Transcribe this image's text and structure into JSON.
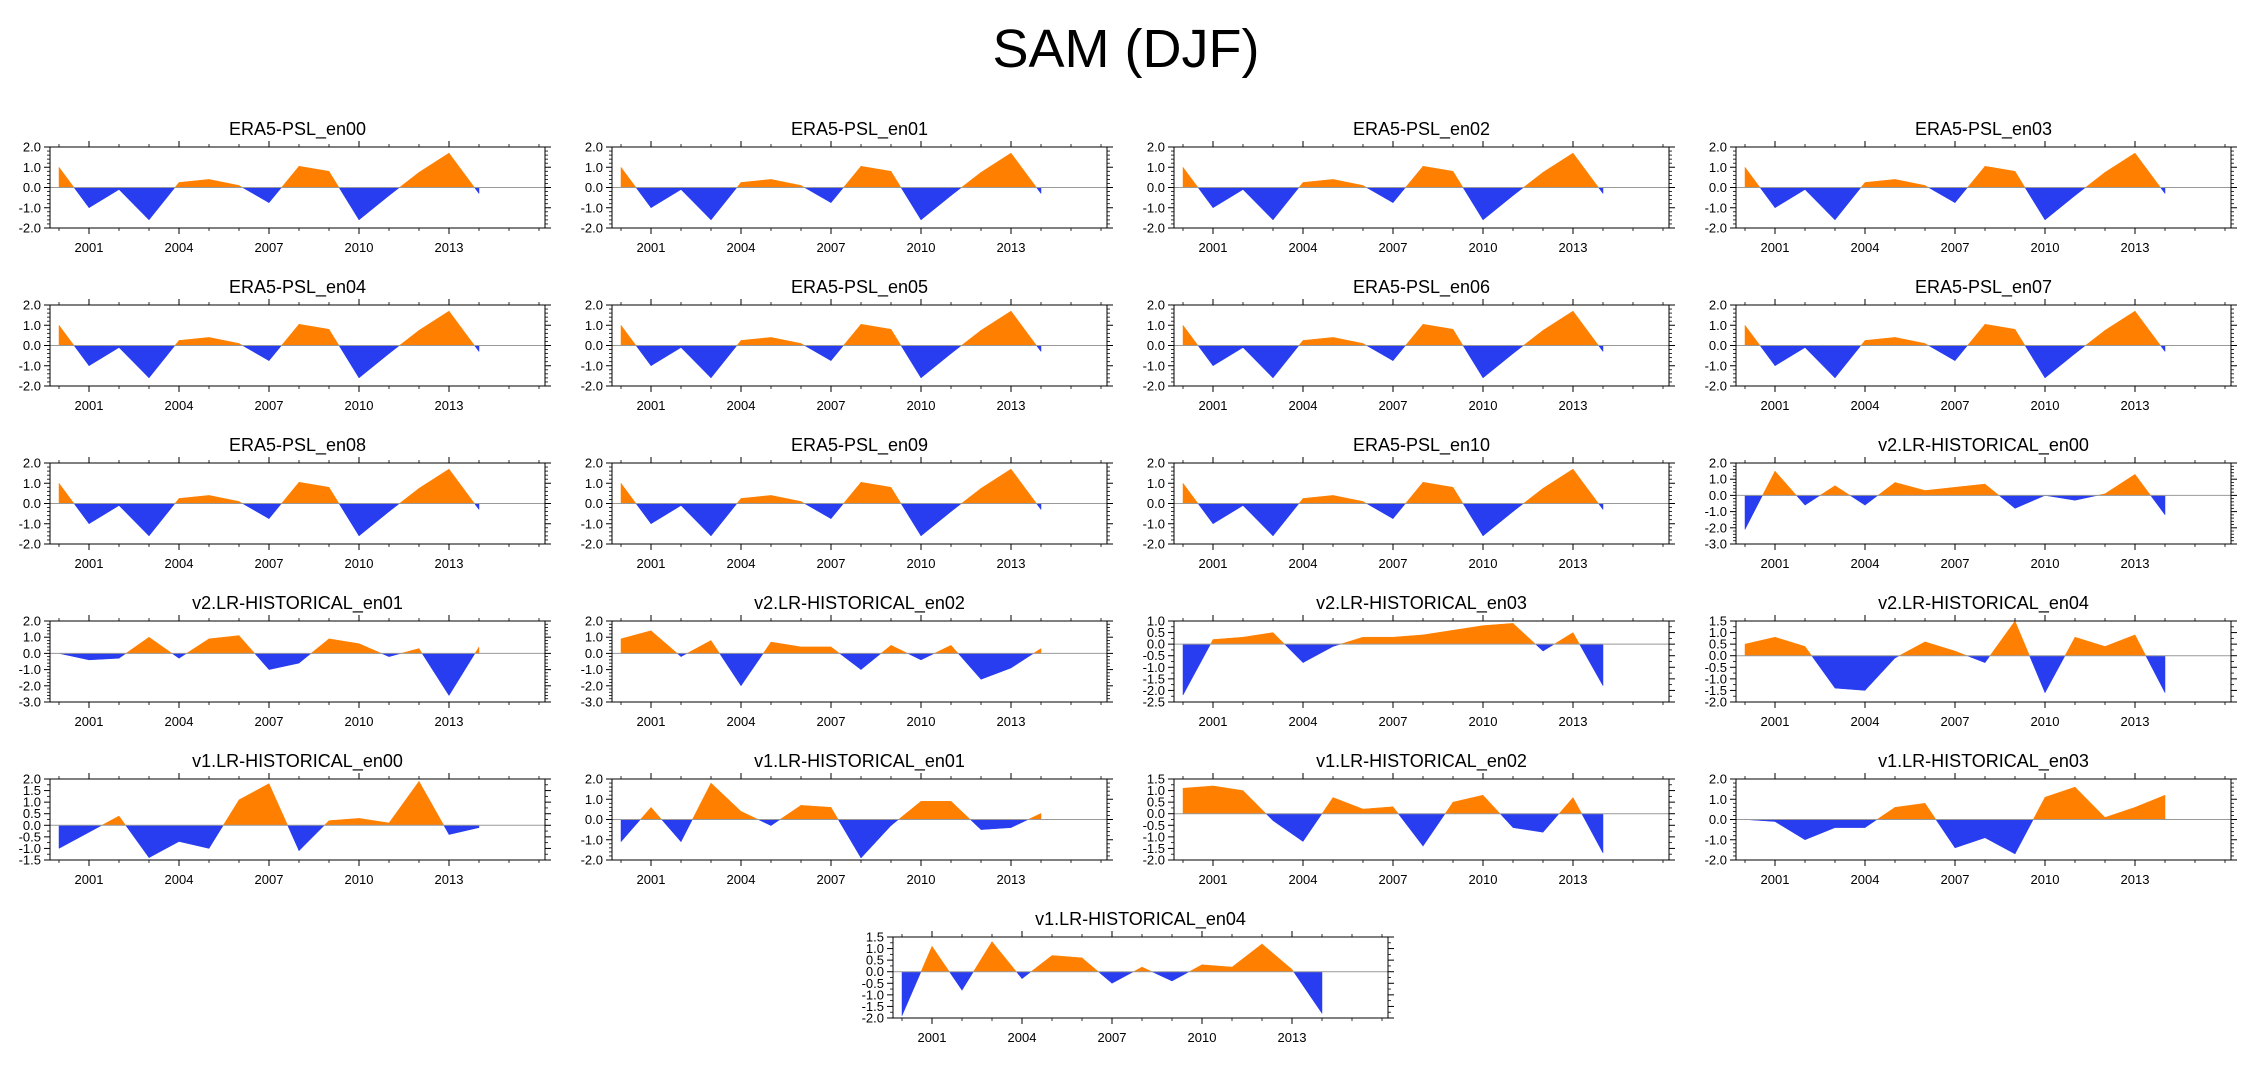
{
  "title": "SAM (DJF)",
  "colors": {
    "positive": "#ff8000",
    "negative": "#283cf0",
    "axis": "#000000",
    "zero_line": "#999999"
  },
  "x_ticks": [
    2001,
    2004,
    2007,
    2010,
    2013
  ],
  "chart_data": [
    {
      "type": "area",
      "title": "ERA5-PSL_en00",
      "years": [
        2000,
        2001,
        2002,
        2003,
        2004,
        2005,
        2006,
        2007,
        2008,
        2009,
        2010,
        2011,
        2012,
        2013,
        2014
      ],
      "values": [
        1.0,
        -1.0,
        -0.1,
        -1.6,
        0.25,
        0.4,
        0.1,
        -0.75,
        1.05,
        0.8,
        -1.6,
        -0.4,
        0.75,
        1.7,
        -0.3
      ],
      "ylim": [
        -2.0,
        2.0
      ],
      "yticks": [
        "2.0",
        "1.0",
        "0.0",
        "-1.0",
        "-2.0"
      ]
    },
    {
      "type": "area",
      "title": "ERA5-PSL_en01",
      "years": [
        2000,
        2001,
        2002,
        2003,
        2004,
        2005,
        2006,
        2007,
        2008,
        2009,
        2010,
        2011,
        2012,
        2013,
        2014
      ],
      "values": [
        1.0,
        -1.0,
        -0.1,
        -1.6,
        0.25,
        0.4,
        0.1,
        -0.75,
        1.05,
        0.8,
        -1.6,
        -0.4,
        0.75,
        1.7,
        -0.3
      ],
      "ylim": [
        -2.0,
        2.0
      ],
      "yticks": [
        "2.0",
        "1.0",
        "0.0",
        "-1.0",
        "-2.0"
      ]
    },
    {
      "type": "area",
      "title": "ERA5-PSL_en02",
      "years": [
        2000,
        2001,
        2002,
        2003,
        2004,
        2005,
        2006,
        2007,
        2008,
        2009,
        2010,
        2011,
        2012,
        2013,
        2014
      ],
      "values": [
        1.0,
        -1.0,
        -0.1,
        -1.6,
        0.25,
        0.4,
        0.1,
        -0.75,
        1.05,
        0.8,
        -1.6,
        -0.4,
        0.75,
        1.7,
        -0.3
      ],
      "ylim": [
        -2.0,
        2.0
      ],
      "yticks": [
        "2.0",
        "1.0",
        "0.0",
        "-1.0",
        "-2.0"
      ]
    },
    {
      "type": "area",
      "title": "ERA5-PSL_en03",
      "years": [
        2000,
        2001,
        2002,
        2003,
        2004,
        2005,
        2006,
        2007,
        2008,
        2009,
        2010,
        2011,
        2012,
        2013,
        2014
      ],
      "values": [
        1.0,
        -1.0,
        -0.1,
        -1.6,
        0.25,
        0.4,
        0.1,
        -0.75,
        1.05,
        0.8,
        -1.6,
        -0.4,
        0.75,
        1.7,
        -0.3
      ],
      "ylim": [
        -2.0,
        2.0
      ],
      "yticks": [
        "2.0",
        "1.0",
        "0.0",
        "-1.0",
        "-2.0"
      ]
    },
    {
      "type": "area",
      "title": "ERA5-PSL_en04",
      "years": [
        2000,
        2001,
        2002,
        2003,
        2004,
        2005,
        2006,
        2007,
        2008,
        2009,
        2010,
        2011,
        2012,
        2013,
        2014
      ],
      "values": [
        1.0,
        -1.0,
        -0.1,
        -1.6,
        0.25,
        0.4,
        0.1,
        -0.75,
        1.05,
        0.8,
        -1.6,
        -0.4,
        0.75,
        1.7,
        -0.3
      ],
      "ylim": [
        -2.0,
        2.0
      ],
      "yticks": [
        "2.0",
        "1.0",
        "0.0",
        "-1.0",
        "-2.0"
      ]
    },
    {
      "type": "area",
      "title": "ERA5-PSL_en05",
      "years": [
        2000,
        2001,
        2002,
        2003,
        2004,
        2005,
        2006,
        2007,
        2008,
        2009,
        2010,
        2011,
        2012,
        2013,
        2014
      ],
      "values": [
        1.0,
        -1.0,
        -0.1,
        -1.6,
        0.25,
        0.4,
        0.1,
        -0.75,
        1.05,
        0.8,
        -1.6,
        -0.4,
        0.75,
        1.7,
        -0.3
      ],
      "ylim": [
        -2.0,
        2.0
      ],
      "yticks": [
        "2.0",
        "1.0",
        "0.0",
        "-1.0",
        "-2.0"
      ]
    },
    {
      "type": "area",
      "title": "ERA5-PSL_en06",
      "years": [
        2000,
        2001,
        2002,
        2003,
        2004,
        2005,
        2006,
        2007,
        2008,
        2009,
        2010,
        2011,
        2012,
        2013,
        2014
      ],
      "values": [
        1.0,
        -1.0,
        -0.1,
        -1.6,
        0.25,
        0.4,
        0.1,
        -0.75,
        1.05,
        0.8,
        -1.6,
        -0.4,
        0.75,
        1.7,
        -0.3
      ],
      "ylim": [
        -2.0,
        2.0
      ],
      "yticks": [
        "2.0",
        "1.0",
        "0.0",
        "-1.0",
        "-2.0"
      ]
    },
    {
      "type": "area",
      "title": "ERA5-PSL_en07",
      "years": [
        2000,
        2001,
        2002,
        2003,
        2004,
        2005,
        2006,
        2007,
        2008,
        2009,
        2010,
        2011,
        2012,
        2013,
        2014
      ],
      "values": [
        1.0,
        -1.0,
        -0.1,
        -1.6,
        0.25,
        0.4,
        0.1,
        -0.75,
        1.05,
        0.8,
        -1.6,
        -0.4,
        0.75,
        1.7,
        -0.3
      ],
      "ylim": [
        -2.0,
        2.0
      ],
      "yticks": [
        "2.0",
        "1.0",
        "0.0",
        "-1.0",
        "-2.0"
      ]
    },
    {
      "type": "area",
      "title": "ERA5-PSL_en08",
      "years": [
        2000,
        2001,
        2002,
        2003,
        2004,
        2005,
        2006,
        2007,
        2008,
        2009,
        2010,
        2011,
        2012,
        2013,
        2014
      ],
      "values": [
        1.0,
        -1.0,
        -0.1,
        -1.6,
        0.25,
        0.4,
        0.1,
        -0.75,
        1.05,
        0.8,
        -1.6,
        -0.4,
        0.75,
        1.7,
        -0.3
      ],
      "ylim": [
        -2.0,
        2.0
      ],
      "yticks": [
        "2.0",
        "1.0",
        "0.0",
        "-1.0",
        "-2.0"
      ]
    },
    {
      "type": "area",
      "title": "ERA5-PSL_en09",
      "years": [
        2000,
        2001,
        2002,
        2003,
        2004,
        2005,
        2006,
        2007,
        2008,
        2009,
        2010,
        2011,
        2012,
        2013,
        2014
      ],
      "values": [
        1.0,
        -1.0,
        -0.1,
        -1.6,
        0.25,
        0.4,
        0.1,
        -0.75,
        1.05,
        0.8,
        -1.6,
        -0.4,
        0.75,
        1.7,
        -0.3
      ],
      "ylim": [
        -2.0,
        2.0
      ],
      "yticks": [
        "2.0",
        "1.0",
        "0.0",
        "-1.0",
        "-2.0"
      ]
    },
    {
      "type": "area",
      "title": "ERA5-PSL_en10",
      "years": [
        2000,
        2001,
        2002,
        2003,
        2004,
        2005,
        2006,
        2007,
        2008,
        2009,
        2010,
        2011,
        2012,
        2013,
        2014
      ],
      "values": [
        1.0,
        -1.0,
        -0.1,
        -1.6,
        0.25,
        0.4,
        0.1,
        -0.75,
        1.05,
        0.8,
        -1.6,
        -0.4,
        0.75,
        1.7,
        -0.3
      ],
      "ylim": [
        -2.0,
        2.0
      ],
      "yticks": [
        "2.0",
        "1.0",
        "0.0",
        "-1.0",
        "-2.0"
      ]
    },
    {
      "type": "area",
      "title": "v2.LR-HISTORICAL_en00",
      "years": [
        2000,
        2001,
        2002,
        2003,
        2004,
        2005,
        2006,
        2007,
        2008,
        2009,
        2010,
        2011,
        2012,
        2013,
        2014
      ],
      "values": [
        -2.1,
        1.5,
        -0.6,
        0.6,
        -0.6,
        0.8,
        0.3,
        0.5,
        0.7,
        -0.8,
        0.0,
        -0.3,
        0.1,
        1.3,
        -1.2
      ],
      "ylim": [
        -3.0,
        2.0
      ],
      "yticks": [
        "2.0",
        "1.0",
        "0.0",
        "-1.0",
        "-2.0",
        "-3.0"
      ]
    },
    {
      "type": "area",
      "title": "v2.LR-HISTORICAL_en01",
      "years": [
        2000,
        2001,
        2002,
        2003,
        2004,
        2005,
        2006,
        2007,
        2008,
        2009,
        2010,
        2011,
        2012,
        2013,
        2014
      ],
      "values": [
        0.0,
        -0.4,
        -0.3,
        1.0,
        -0.3,
        0.9,
        1.1,
        -1.0,
        -0.6,
        0.9,
        0.6,
        -0.2,
        0.3,
        -2.6,
        0.4
      ],
      "ylim": [
        -3.0,
        2.0
      ],
      "yticks": [
        "2.0",
        "1.0",
        "0.0",
        "-1.0",
        "-2.0",
        "-3.0"
      ]
    },
    {
      "type": "area",
      "title": "v2.LR-HISTORICAL_en02",
      "years": [
        2000,
        2001,
        2002,
        2003,
        2004,
        2005,
        2006,
        2007,
        2008,
        2009,
        2010,
        2011,
        2012,
        2013,
        2014
      ],
      "values": [
        0.9,
        1.4,
        -0.2,
        0.8,
        -2.0,
        0.7,
        0.4,
        0.4,
        -1.0,
        0.5,
        -0.4,
        0.5,
        -1.6,
        -0.9,
        0.3
      ],
      "ylim": [
        -3.0,
        2.0
      ],
      "yticks": [
        "2.0",
        "1.0",
        "0.0",
        "-1.0",
        "-2.0",
        "-3.0"
      ]
    },
    {
      "type": "area",
      "title": "v2.LR-HISTORICAL_en03",
      "years": [
        2000,
        2001,
        2002,
        2003,
        2004,
        2005,
        2006,
        2007,
        2008,
        2009,
        2010,
        2011,
        2012,
        2013,
        2014
      ],
      "values": [
        -2.2,
        0.2,
        0.3,
        0.5,
        -0.8,
        -0.1,
        0.3,
        0.3,
        0.4,
        0.6,
        0.8,
        0.9,
        -0.3,
        0.5,
        -1.8
      ],
      "ylim": [
        -2.5,
        1.0
      ],
      "yticks": [
        "1.0",
        "0.5",
        "0.0",
        "-0.5",
        "-1.0",
        "-1.5",
        "-2.0",
        "-2.5"
      ]
    },
    {
      "type": "area",
      "title": "v2.LR-HISTORICAL_en04",
      "years": [
        2000,
        2001,
        2002,
        2003,
        2004,
        2005,
        2006,
        2007,
        2008,
        2009,
        2010,
        2011,
        2012,
        2013,
        2014
      ],
      "values": [
        0.5,
        0.8,
        0.4,
        -1.4,
        -1.5,
        -0.1,
        0.6,
        0.2,
        -0.3,
        1.5,
        -1.6,
        0.8,
        0.4,
        0.9,
        -1.6
      ],
      "ylim": [
        -2.0,
        1.5
      ],
      "yticks": [
        "1.5",
        "1.0",
        "0.5",
        "0.0",
        "-0.5",
        "-1.0",
        "-1.5",
        "-2.0"
      ]
    },
    {
      "type": "area",
      "title": "v1.LR-HISTORICAL_en00",
      "years": [
        2000,
        2001,
        2002,
        2003,
        2004,
        2005,
        2006,
        2007,
        2008,
        2009,
        2010,
        2011,
        2012,
        2013,
        2014
      ],
      "values": [
        -1.0,
        -0.3,
        0.4,
        -1.4,
        -0.7,
        -1.0,
        1.1,
        1.8,
        -1.1,
        0.2,
        0.3,
        0.1,
        1.9,
        -0.4,
        -0.1
      ],
      "ylim": [
        -1.5,
        2.0
      ],
      "yticks": [
        "2.0",
        "1.5",
        "1.0",
        "0.5",
        "0.0",
        "-0.5",
        "-1.0",
        "-1.5"
      ]
    },
    {
      "type": "area",
      "title": "v1.LR-HISTORICAL_en01",
      "years": [
        2000,
        2001,
        2002,
        2003,
        2004,
        2005,
        2006,
        2007,
        2008,
        2009,
        2010,
        2011,
        2012,
        2013,
        2014
      ],
      "values": [
        -1.1,
        0.6,
        -1.1,
        1.8,
        0.4,
        -0.3,
        0.7,
        0.6,
        -1.9,
        -0.3,
        0.9,
        0.9,
        -0.5,
        -0.4,
        0.3
      ],
      "ylim": [
        -2.0,
        2.0
      ],
      "yticks": [
        "2.0",
        "1.0",
        "0.0",
        "-1.0",
        "-2.0"
      ]
    },
    {
      "type": "area",
      "title": "v1.LR-HISTORICAL_en02",
      "years": [
        2000,
        2001,
        2002,
        2003,
        2004,
        2005,
        2006,
        2007,
        2008,
        2009,
        2010,
        2011,
        2012,
        2013,
        2014
      ],
      "values": [
        1.1,
        1.2,
        1.0,
        -0.3,
        -1.2,
        0.7,
        0.2,
        0.3,
        -1.4,
        0.5,
        0.8,
        -0.6,
        -0.8,
        0.7,
        -1.7
      ],
      "ylim": [
        -2.0,
        1.5
      ],
      "yticks": [
        "1.5",
        "1.0",
        "0.5",
        "0.0",
        "-0.5",
        "-1.0",
        "-1.5",
        "-2.0"
      ]
    },
    {
      "type": "area",
      "title": "v1.LR-HISTORICAL_en03",
      "years": [
        2000,
        2001,
        2002,
        2003,
        2004,
        2005,
        2006,
        2007,
        2008,
        2009,
        2010,
        2011,
        2012,
        2013,
        2014
      ],
      "values": [
        0.0,
        -0.1,
        -1.0,
        -0.4,
        -0.4,
        0.6,
        0.8,
        -1.4,
        -0.9,
        -1.7,
        1.1,
        1.6,
        0.1,
        0.6,
        1.2
      ],
      "ylim": [
        -2.0,
        2.0
      ],
      "yticks": [
        "2.0",
        "1.0",
        "0.0",
        "-1.0",
        "-2.0"
      ]
    },
    {
      "type": "area",
      "title": "v1.LR-HISTORICAL_en04",
      "years": [
        2000,
        2001,
        2002,
        2003,
        2004,
        2005,
        2006,
        2007,
        2008,
        2009,
        2010,
        2011,
        2012,
        2013,
        2014
      ],
      "values": [
        -1.9,
        1.1,
        -0.8,
        1.3,
        -0.3,
        0.7,
        0.6,
        -0.5,
        0.2,
        -0.4,
        0.3,
        0.2,
        1.2,
        0.1,
        -1.8
      ],
      "ylim": [
        -2.0,
        1.5
      ],
      "yticks": [
        "1.5",
        "1.0",
        "0.5",
        "0.0",
        "-0.5",
        "-1.0",
        "-1.5",
        "-2.0"
      ]
    }
  ]
}
